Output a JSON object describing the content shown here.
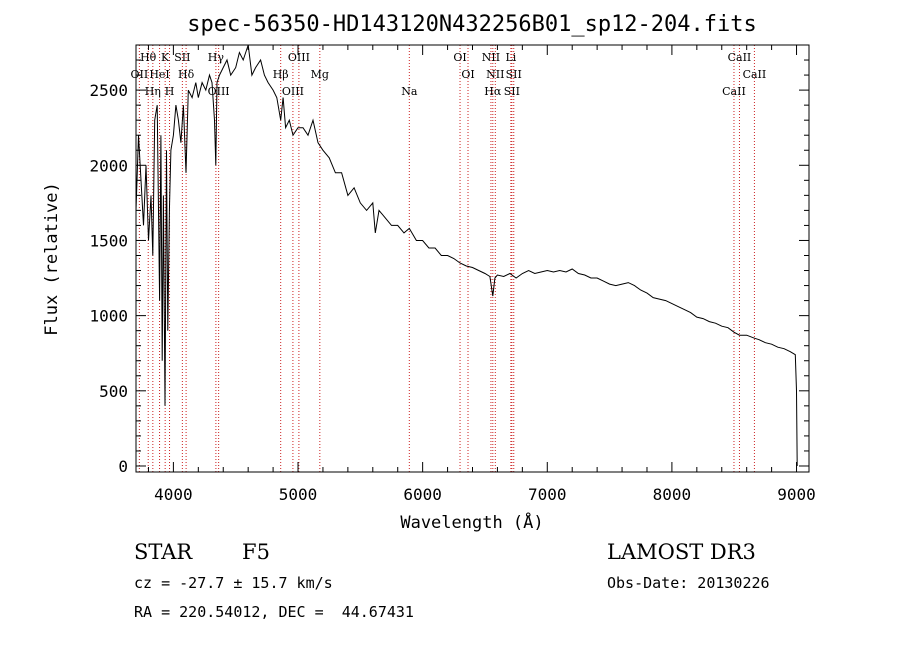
{
  "chart_data": {
    "type": "line",
    "title": "spec-56350-HD143120N432256B01_sp12-204.fits",
    "xlabel": "Wavelength (Å)",
    "ylabel": "Flux (relative)",
    "xlim": [
      3700,
      9100
    ],
    "ylim": [
      -40,
      2800
    ],
    "x_ticks": [
      4000,
      5000,
      6000,
      7000,
      8000,
      9000
    ],
    "y_ticks": [
      0,
      500,
      1000,
      1500,
      2000,
      2500
    ],
    "series": [
      {
        "name": "flux",
        "x": [
          3700,
          3720,
          3740,
          3760,
          3780,
          3800,
          3820,
          3835,
          3850,
          3870,
          3889,
          3900,
          3910,
          3920,
          3933,
          3945,
          3955,
          3968,
          3980,
          4000,
          4020,
          4040,
          4060,
          4080,
          4101,
          4120,
          4150,
          4180,
          4200,
          4230,
          4260,
          4290,
          4310,
          4330,
          4340,
          4350,
          4370,
          4400,
          4430,
          4460,
          4500,
          4530,
          4560,
          4600,
          4630,
          4660,
          4700,
          4730,
          4760,
          4800,
          4830,
          4861,
          4880,
          4900,
          4930,
          4960,
          5000,
          5040,
          5080,
          5120,
          5160,
          5200,
          5250,
          5300,
          5350,
          5400,
          5450,
          5500,
          5550,
          5600,
          5620,
          5650,
          5700,
          5750,
          5800,
          5850,
          5893,
          5950,
          6000,
          6050,
          6100,
          6150,
          6200,
          6250,
          6300,
          6350,
          6400,
          6450,
          6500,
          6540,
          6563,
          6580,
          6600,
          6650,
          6700,
          6750,
          6800,
          6850,
          6900,
          6950,
          7000,
          7050,
          7100,
          7150,
          7200,
          7250,
          7300,
          7350,
          7400,
          7450,
          7500,
          7550,
          7600,
          7650,
          7700,
          7750,
          7800,
          7850,
          7900,
          7950,
          8000,
          8050,
          8100,
          8150,
          8200,
          8250,
          8300,
          8350,
          8400,
          8450,
          8498,
          8542,
          8600,
          8662,
          8700,
          8750,
          8800,
          8850,
          8900,
          8950,
          8990,
          9000,
          9005
        ],
        "values": [
          1700,
          2200,
          1900,
          1600,
          2000,
          1500,
          1800,
          1400,
          2300,
          2400,
          1100,
          2200,
          700,
          1800,
          400,
          2100,
          900,
          1700,
          2100,
          2200,
          2400,
          2300,
          2150,
          2400,
          1950,
          2500,
          2450,
          2550,
          2450,
          2550,
          2500,
          2600,
          2550,
          2300,
          2000,
          2550,
          2600,
          2650,
          2700,
          2600,
          2650,
          2750,
          2700,
          2800,
          2600,
          2650,
          2700,
          2600,
          2550,
          2500,
          2450,
          2300,
          2450,
          2250,
          2300,
          2200,
          2250,
          2250,
          2200,
          2300,
          2150,
          2100,
          2050,
          1950,
          1950,
          1800,
          1850,
          1750,
          1700,
          1750,
          1550,
          1700,
          1650,
          1600,
          1600,
          1550,
          1580,
          1500,
          1500,
          1450,
          1450,
          1400,
          1400,
          1380,
          1350,
          1330,
          1320,
          1300,
          1280,
          1260,
          1130,
          1250,
          1270,
          1260,
          1280,
          1250,
          1280,
          1300,
          1280,
          1290,
          1300,
          1290,
          1300,
          1290,
          1310,
          1280,
          1270,
          1250,
          1250,
          1230,
          1210,
          1200,
          1210,
          1220,
          1200,
          1170,
          1150,
          1120,
          1110,
          1100,
          1080,
          1060,
          1040,
          1020,
          990,
          980,
          960,
          950,
          930,
          920,
          890,
          870,
          870,
          850,
          840,
          820,
          810,
          790,
          780,
          760,
          740,
          500,
          0
        ]
      }
    ],
    "spectral_lines": [
      {
        "label": "Hθ",
        "x": 3798
      },
      {
        "label": "OII",
        "x": 3727
      },
      {
        "label": "Hη",
        "x": 3835
      },
      {
        "label": "K",
        "x": 3934
      },
      {
        "label": "HeI",
        "x": 3889
      },
      {
        "label": "H",
        "x": 3969
      },
      {
        "label": "SII",
        "x": 4072
      },
      {
        "label": "Hδ",
        "x": 4102
      },
      {
        "label": "OIII",
        "x": 4363
      },
      {
        "label": "Hγ",
        "x": 4341
      },
      {
        "label": "Hβ",
        "x": 4861
      },
      {
        "label": "OIII",
        "x": 4959
      },
      {
        "label": "OIII",
        "x": 5007
      },
      {
        "label": "Mg",
        "x": 5175
      },
      {
        "label": "Na",
        "x": 5893
      },
      {
        "label": "OI",
        "x": 6300
      },
      {
        "label": "OI",
        "x": 6364
      },
      {
        "label": "Hα",
        "x": 6563
      },
      {
        "label": "NII",
        "x": 6548
      },
      {
        "label": "NII",
        "x": 6583
      },
      {
        "label": "SII",
        "x": 6716
      },
      {
        "label": "Li",
        "x": 6708
      },
      {
        "label": "SII",
        "x": 6731
      },
      {
        "label": "CaII",
        "x": 8498
      },
      {
        "label": "CaII",
        "x": 8542
      },
      {
        "label": "CaII",
        "x": 8662
      }
    ]
  },
  "info": {
    "class_label": "STAR",
    "subclass": "F5",
    "survey": "LAMOST DR3",
    "cz": "cz = -27.7 ± 15.7 km/s",
    "obs_date": "Obs-Date: 20130226",
    "coords": "RA = 220.54012, DEC =  44.67431"
  },
  "colors": {
    "line_marker": "#cc2222",
    "spectrum": "#000000"
  }
}
